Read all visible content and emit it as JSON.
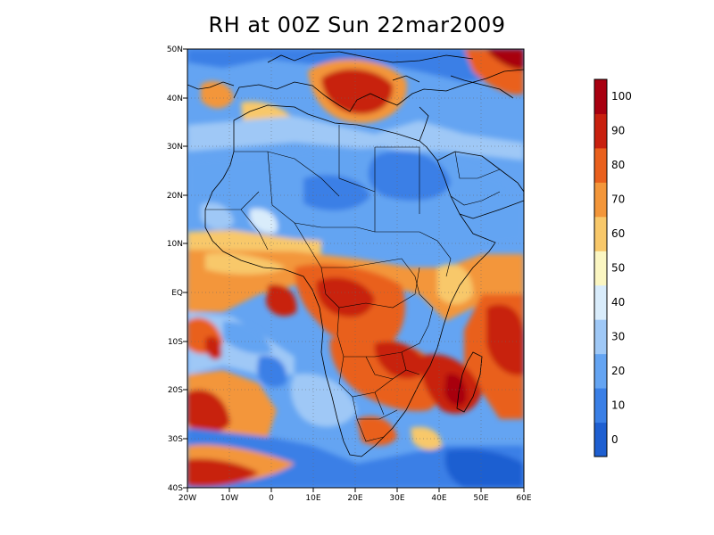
{
  "title": "RH at 00Z Sun 22mar2009",
  "map": {
    "variable": "RH",
    "region": "Africa",
    "lon_range": [
      -20,
      60
    ],
    "lat_range": [
      -40,
      50
    ],
    "x_ticks": [
      "20W",
      "10W",
      "0",
      "10E",
      "20E",
      "30E",
      "40E",
      "50E",
      "60E"
    ],
    "y_ticks": [
      "50N",
      "40N",
      "30N",
      "20N",
      "10N",
      "EQ",
      "10S",
      "20S",
      "30S",
      "40S"
    ],
    "grid": "dotted",
    "coastlines": true,
    "borders": true
  },
  "colorbar": {
    "placement": "right",
    "colors": [
      "#1e5fd1",
      "#3a7fe6",
      "#64a4f2",
      "#9fc8f6",
      "#d9ecfb",
      "#fbf6c2",
      "#f8c86a",
      "#f3963a",
      "#e9601d",
      "#c8200f",
      "#a80010"
    ],
    "labels": [
      "0",
      "10",
      "20",
      "30",
      "40",
      "50",
      "60",
      "70",
      "80",
      "90",
      "100"
    ]
  }
}
